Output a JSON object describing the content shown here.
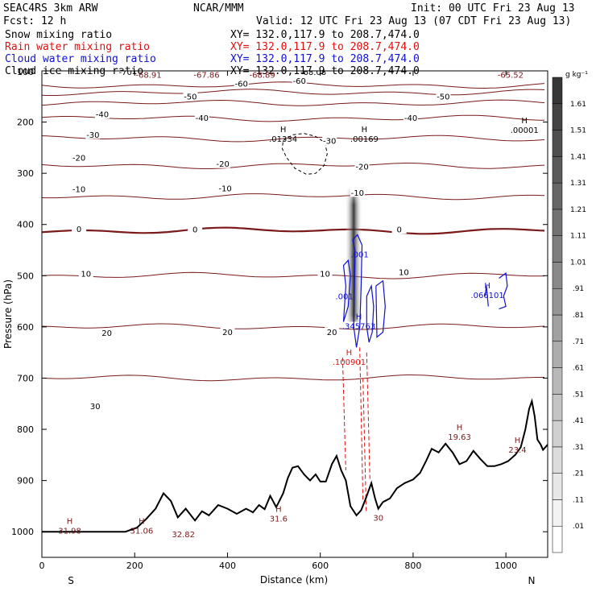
{
  "header": {
    "model": "SEAC4RS  3km ARW",
    "org": "NCAR/MMM",
    "init": "Init: 00 UTC Fri 23 Aug 13",
    "fcst": "Fcst:    12 h",
    "valid": "Valid: 12 UTC Fri 23 Aug 13 (07 CDT Fri 23 Aug 13)"
  },
  "fields": [
    {
      "name": "Snow mixing ratio",
      "xy": "XY= 132.0,117.9 to 208.7,474.0",
      "color": "#000000"
    },
    {
      "name": "Rain water mixing ratio",
      "xy": "XY= 132.0,117.9 to 208.7,474.0",
      "color": "#e01010"
    },
    {
      "name": "Cloud water mixing ratio",
      "xy": "XY= 132.0,117.9 to 208.7,474.0",
      "color": "#1010d0"
    },
    {
      "name": "Cloud ice mixing ratio",
      "xy": "XY= 132.0,117.9 to 208.7,474.0",
      "color": "#000000"
    }
  ],
  "colors": {
    "temperature_contour": "#7a1a1a",
    "terrain": "#000000",
    "rain": "#e01010",
    "cloud_water": "#1010d0"
  },
  "chart_data": {
    "type": "cross-section",
    "xlabel": "Distance (km)",
    "ylabel": "Pressure (hPa)",
    "xlim": [
      0,
      1090
    ],
    "ylim": [
      100,
      1050
    ],
    "x_ticks": [
      0,
      200,
      400,
      600,
      800,
      1000
    ],
    "y_ticks": [
      200,
      300,
      400,
      500,
      600,
      700,
      800,
      900,
      1000
    ],
    "y_top_label": "100",
    "x_end_labels": {
      "left": "S",
      "right": "N"
    },
    "colorbar": {
      "unit": "g kg⁻¹",
      "levels": [
        ".01",
        ".11",
        ".21",
        ".31",
        ".41",
        ".51",
        ".61",
        ".71",
        ".81",
        ".91",
        "1.01",
        "1.11",
        "1.21",
        "1.31",
        "1.41",
        "1.51",
        "1.61"
      ]
    },
    "temperature_contours": [
      {
        "p": 128,
        "label": "-70"
      },
      {
        "p": 142,
        "label": "-60"
      },
      {
        "p": 163,
        "label": "-50"
      },
      {
        "p": 193,
        "label": "-40"
      },
      {
        "p": 232,
        "label": "-30"
      },
      {
        "p": 285,
        "label": "-20"
      },
      {
        "p": 345,
        "label": "-10"
      },
      {
        "p": 412,
        "label": "0"
      },
      {
        "p": 500,
        "label": "10"
      },
      {
        "p": 600,
        "label": "20"
      },
      {
        "p": 700,
        "label": "30"
      }
    ],
    "contour_labels": [
      {
        "x": 180,
        "p": 102,
        "text": "-70"
      },
      {
        "x": 585,
        "p": 102,
        "text": "-68.08"
      },
      {
        "x": 430,
        "p": 125,
        "text": "-60"
      },
      {
        "x": 555,
        "p": 120,
        "text": "-60"
      },
      {
        "x": 320,
        "p": 150,
        "text": "-50"
      },
      {
        "x": 865,
        "p": 150,
        "text": "-50"
      },
      {
        "x": 130,
        "p": 185,
        "text": "-40"
      },
      {
        "x": 345,
        "p": 192,
        "text": "-40"
      },
      {
        "x": 795,
        "p": 192,
        "text": "-40"
      },
      {
        "x": 110,
        "p": 225,
        "text": "-30"
      },
      {
        "x": 620,
        "p": 237,
        "text": "-30"
      },
      {
        "x": 80,
        "p": 270,
        "text": "-20"
      },
      {
        "x": 390,
        "p": 282,
        "text": "-20"
      },
      {
        "x": 690,
        "p": 287,
        "text": "-20"
      },
      {
        "x": 80,
        "p": 331,
        "text": "-10"
      },
      {
        "x": 395,
        "p": 330,
        "text": "-10"
      },
      {
        "x": 680,
        "p": 338,
        "text": "-10"
      },
      {
        "x": 80,
        "p": 409,
        "text": "0"
      },
      {
        "x": 330,
        "p": 410,
        "text": "0"
      },
      {
        "x": 770,
        "p": 410,
        "text": "0"
      },
      {
        "x": 95,
        "p": 496,
        "text": "10"
      },
      {
        "x": 610,
        "p": 496,
        "text": "10"
      },
      {
        "x": 780,
        "p": 493,
        "text": "10"
      },
      {
        "x": 140,
        "p": 612,
        "text": "20"
      },
      {
        "x": 400,
        "p": 610,
        "text": "20"
      },
      {
        "x": 625,
        "p": 610,
        "text": "20"
      },
      {
        "x": 115,
        "p": 755,
        "text": "30"
      }
    ],
    "extrema_labels": [
      {
        "x": 230,
        "p": 98,
        "tag": "L",
        "value": "-68.91",
        "color": "#7a1a1a"
      },
      {
        "x": 355,
        "p": 98,
        "tag": "L",
        "value": "-67.86",
        "color": "#7a1a1a"
      },
      {
        "x": 475,
        "p": 98,
        "tag": "L",
        "value": "-68.89",
        "color": "#7a1a1a"
      },
      {
        "x": 1010,
        "p": 98,
        "tag": "L",
        "value": "-65.52",
        "color": "#7a1a1a"
      },
      {
        "x": 520,
        "p": 223,
        "tag": "H",
        "value": ".01334",
        "color": "#000000"
      },
      {
        "x": 695,
        "p": 223,
        "tag": "H",
        "value": ".00169",
        "color": "#000000"
      },
      {
        "x": 1040,
        "p": 205,
        "tag": "H",
        "value": ".00001",
        "color": "#000000"
      },
      {
        "x": 685,
        "p": 448,
        "tag": "",
        "value": ".001",
        "color": "#1010d0"
      },
      {
        "x": 652,
        "p": 530,
        "tag": "",
        "value": ".001",
        "color": "#1010d0"
      },
      {
        "x": 960,
        "p": 528,
        "tag": "H",
        "value": ".066101",
        "color": "#1010d0"
      },
      {
        "x": 683,
        "p": 588,
        "tag": "H",
        "value": ".345763",
        "color": "#1010d0"
      },
      {
        "x": 662,
        "p": 658,
        "tag": "H",
        "value": ".100901",
        "color": "#e01010"
      },
      {
        "x": 900,
        "p": 805,
        "tag": "H",
        "value": "19.63",
        "color": "#7a1a1a"
      },
      {
        "x": 1025,
        "p": 830,
        "tag": "H",
        "value": "23.4",
        "color": "#7a1a1a"
      },
      {
        "x": 725,
        "p": 963,
        "tag": "",
        "value": "30",
        "color": "#7a1a1a"
      },
      {
        "x": 510,
        "p": 964,
        "tag": "H",
        "value": "31.6",
        "color": "#7a1a1a"
      },
      {
        "x": 60,
        "p": 988,
        "tag": "H",
        "value": "31.98",
        "color": "#7a1a1a"
      },
      {
        "x": 215,
        "p": 988,
        "tag": "H",
        "value": "31.06",
        "color": "#7a1a1a"
      },
      {
        "x": 305,
        "p": 995,
        "tag": "",
        "value": "32.82",
        "color": "#7a1a1a"
      }
    ],
    "terrain": [
      [
        0,
        1000
      ],
      [
        150,
        1000
      ],
      [
        180,
        1000
      ],
      [
        205,
        992
      ],
      [
        225,
        975
      ],
      [
        245,
        955
      ],
      [
        262,
        925
      ],
      [
        278,
        940
      ],
      [
        293,
        972
      ],
      [
        310,
        955
      ],
      [
        330,
        978
      ],
      [
        345,
        960
      ],
      [
        360,
        968
      ],
      [
        380,
        948
      ],
      [
        400,
        955
      ],
      [
        420,
        965
      ],
      [
        440,
        955
      ],
      [
        455,
        962
      ],
      [
        468,
        948
      ],
      [
        480,
        956
      ],
      [
        492,
        930
      ],
      [
        505,
        952
      ],
      [
        520,
        925
      ],
      [
        530,
        895
      ],
      [
        540,
        875
      ],
      [
        552,
        872
      ],
      [
        565,
        888
      ],
      [
        578,
        900
      ],
      [
        590,
        888
      ],
      [
        600,
        902
      ],
      [
        612,
        902
      ],
      [
        625,
        868
      ],
      [
        635,
        852
      ],
      [
        645,
        880
      ],
      [
        655,
        900
      ],
      [
        665,
        950
      ],
      [
        678,
        968
      ],
      [
        688,
        958
      ],
      [
        698,
        935
      ],
      [
        710,
        905
      ],
      [
        718,
        935
      ],
      [
        725,
        955
      ],
      [
        735,
        942
      ],
      [
        750,
        935
      ],
      [
        765,
        915
      ],
      [
        782,
        905
      ],
      [
        800,
        898
      ],
      [
        815,
        885
      ],
      [
        828,
        862
      ],
      [
        840,
        838
      ],
      [
        855,
        845
      ],
      [
        870,
        828
      ],
      [
        885,
        845
      ],
      [
        900,
        868
      ],
      [
        915,
        862
      ],
      [
        930,
        842
      ],
      [
        945,
        858
      ],
      [
        960,
        872
      ],
      [
        975,
        872
      ],
      [
        990,
        868
      ],
      [
        1005,
        862
      ],
      [
        1020,
        850
      ],
      [
        1032,
        835
      ],
      [
        1042,
        800
      ],
      [
        1050,
        760
      ],
      [
        1056,
        745
      ],
      [
        1062,
        775
      ],
      [
        1068,
        820
      ],
      [
        1075,
        830
      ],
      [
        1080,
        840
      ],
      [
        1090,
        830
      ]
    ],
    "snow_cloud": [
      [
        520,
        236
      ],
      [
        540,
        225
      ],
      [
        565,
        222
      ],
      [
        590,
        228
      ],
      [
        610,
        240
      ],
      [
        615,
        262
      ],
      [
        608,
        285
      ],
      [
        590,
        300
      ],
      [
        570,
        302
      ],
      [
        545,
        290
      ],
      [
        528,
        270
      ],
      [
        518,
        252
      ]
    ]
  }
}
